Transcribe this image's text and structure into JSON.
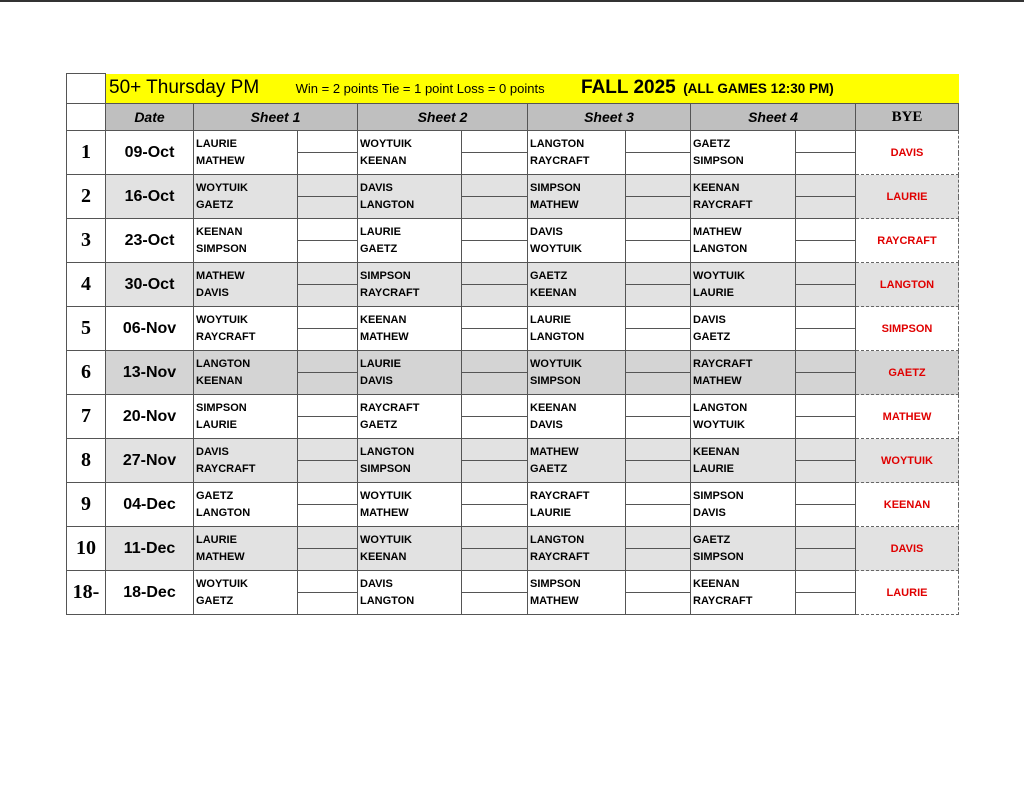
{
  "header": {
    "title": "50+ Thursday PM",
    "points_rule": "Win = 2 points Tie = 1 point Loss = 0 points",
    "season": "FALL 2025",
    "game_time": "(ALL GAMES 12:30 PM)"
  },
  "columns": {
    "date": "Date",
    "sheet1": "Sheet 1",
    "sheet2": "Sheet 2",
    "sheet3": "Sheet 3",
    "sheet4": "Sheet 4",
    "bye": "BYE"
  },
  "colors": {
    "highlight": "#ffff00",
    "header_gray": "#bfbfbf",
    "row_gray": "#e2e2e2",
    "bye_text": "#e00000"
  },
  "rows": [
    {
      "num": "1",
      "date": "09-Oct",
      "sheets": [
        [
          "LAURIE",
          "MATHEW"
        ],
        [
          "WOYTUIK",
          "KEENAN"
        ],
        [
          "LANGTON",
          "RAYCRAFT"
        ],
        [
          "GAETZ",
          "SIMPSON"
        ]
      ],
      "bye": "DAVIS"
    },
    {
      "num": "2",
      "date": "16-Oct",
      "sheets": [
        [
          "WOYTUIK",
          "GAETZ"
        ],
        [
          "DAVIS",
          "LANGTON"
        ],
        [
          "SIMPSON",
          "MATHEW"
        ],
        [
          "KEENAN",
          "RAYCRAFT"
        ]
      ],
      "bye": "LAURIE"
    },
    {
      "num": "3",
      "date": "23-Oct",
      "sheets": [
        [
          "KEENAN",
          "SIMPSON"
        ],
        [
          "LAURIE",
          "GAETZ"
        ],
        [
          "DAVIS",
          "WOYTUIK"
        ],
        [
          "MATHEW",
          "LANGTON"
        ]
      ],
      "bye": "RAYCRAFT"
    },
    {
      "num": "4",
      "date": "30-Oct",
      "sheets": [
        [
          "MATHEW",
          "DAVIS"
        ],
        [
          "SIMPSON",
          "RAYCRAFT"
        ],
        [
          "GAETZ",
          "KEENAN"
        ],
        [
          "WOYTUIK",
          "LAURIE"
        ]
      ],
      "bye": "LANGTON"
    },
    {
      "num": "5",
      "date": "06-Nov",
      "sheets": [
        [
          "WOYTUIK",
          "RAYCRAFT"
        ],
        [
          "KEENAN",
          "MATHEW"
        ],
        [
          "LAURIE",
          "LANGTON"
        ],
        [
          "DAVIS",
          "GAETZ"
        ]
      ],
      "bye": "SIMPSON"
    },
    {
      "num": "6",
      "date": "13-Nov",
      "sheets": [
        [
          "LANGTON",
          "KEENAN"
        ],
        [
          "LAURIE",
          "DAVIS"
        ],
        [
          "WOYTUIK",
          "SIMPSON"
        ],
        [
          "RAYCRAFT",
          "MATHEW"
        ]
      ],
      "bye": "GAETZ"
    },
    {
      "num": "7",
      "date": "20-Nov",
      "sheets": [
        [
          "SIMPSON",
          "LAURIE"
        ],
        [
          "RAYCRAFT",
          "GAETZ"
        ],
        [
          "KEENAN",
          "DAVIS"
        ],
        [
          "LANGTON",
          "WOYTUIK"
        ]
      ],
      "bye": "MATHEW"
    },
    {
      "num": "8",
      "date": "27-Nov",
      "sheets": [
        [
          "DAVIS",
          "RAYCRAFT"
        ],
        [
          "LANGTON",
          "SIMPSON"
        ],
        [
          "MATHEW",
          "GAETZ"
        ],
        [
          "KEENAN",
          "LAURIE"
        ]
      ],
      "bye": "WOYTUIK"
    },
    {
      "num": "9",
      "date": "04-Dec",
      "sheets": [
        [
          "GAETZ",
          "LANGTON"
        ],
        [
          "WOYTUIK",
          "MATHEW"
        ],
        [
          "RAYCRAFT",
          "LAURIE"
        ],
        [
          "SIMPSON",
          "DAVIS"
        ]
      ],
      "bye": "KEENAN"
    },
    {
      "num": "10",
      "date": "11-Dec",
      "sheets": [
        [
          "LAURIE",
          "MATHEW"
        ],
        [
          "WOYTUIK",
          "KEENAN"
        ],
        [
          "LANGTON",
          "RAYCRAFT"
        ],
        [
          "GAETZ",
          "SIMPSON"
        ]
      ],
      "bye": "DAVIS"
    },
    {
      "num": "18-",
      "date": "18-Dec",
      "sheets": [
        [
          "WOYTUIK",
          "GAETZ"
        ],
        [
          "DAVIS",
          "LANGTON"
        ],
        [
          "SIMPSON",
          "MATHEW"
        ],
        [
          "KEENAN",
          "RAYCRAFT"
        ]
      ],
      "bye": "LAURIE"
    }
  ]
}
